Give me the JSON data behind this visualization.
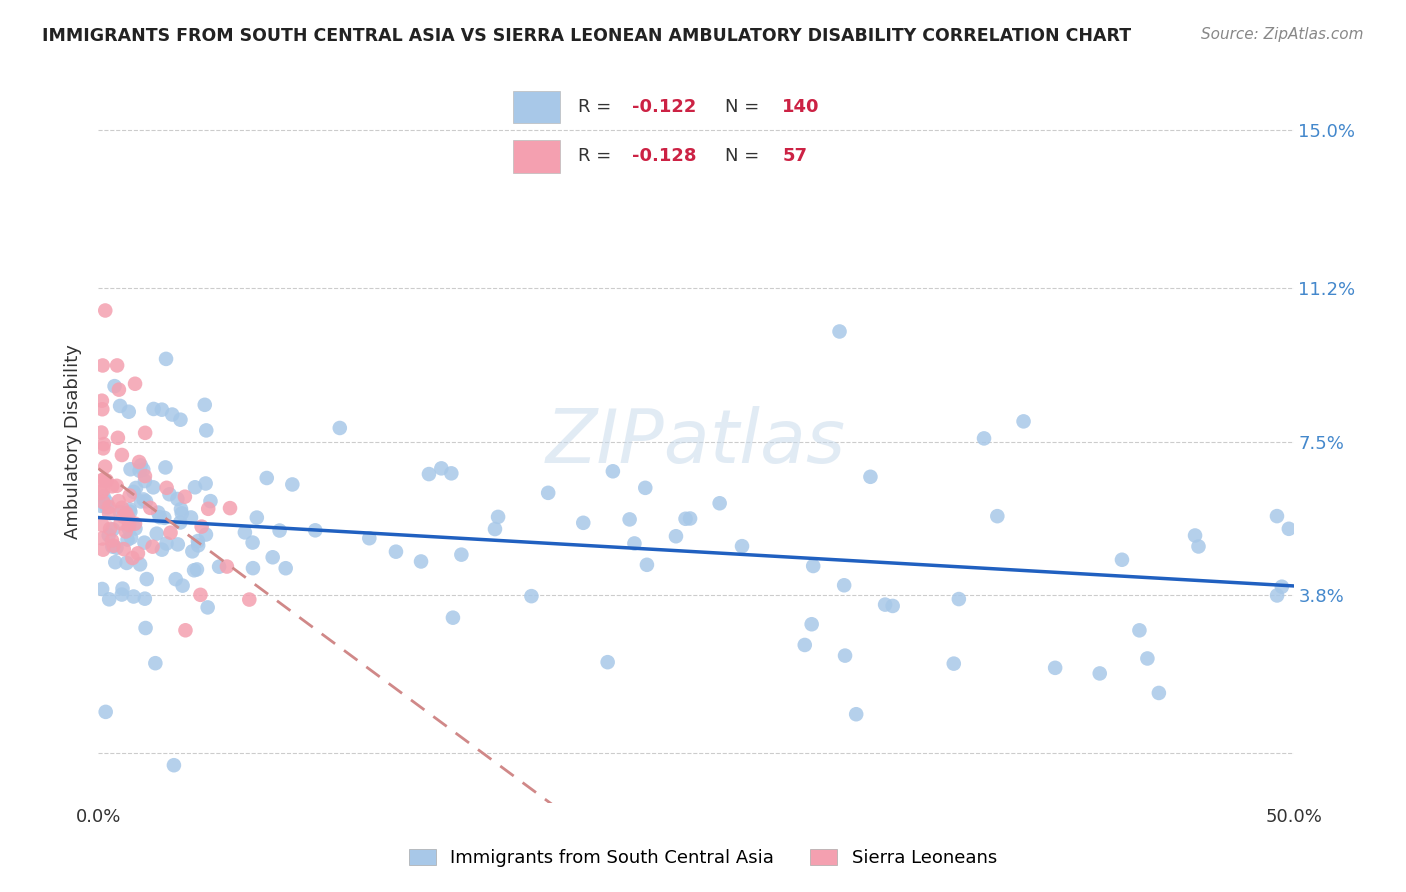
{
  "title": "IMMIGRANTS FROM SOUTH CENTRAL ASIA VS SIERRA LEONEAN AMBULATORY DISABILITY CORRELATION CHART",
  "source": "Source: ZipAtlas.com",
  "ylabel": "Ambulatory Disability",
  "watermark": "ZIPatlas",
  "xmin": 0.0,
  "xmax": 0.5,
  "ymin": -0.012,
  "ymax": 0.162,
  "yticks": [
    0.0,
    0.038,
    0.075,
    0.112,
    0.15
  ],
  "ytick_labels": [
    "",
    "3.8%",
    "7.5%",
    "11.2%",
    "15.0%"
  ],
  "xticks": [
    0.0,
    0.125,
    0.25,
    0.375,
    0.5
  ],
  "xtick_labels": [
    "0.0%",
    "",
    "",
    "",
    "50.0%"
  ],
  "color_blue": "#a8c8e8",
  "color_pink": "#f4a0b0",
  "trend_blue": "#2060c0",
  "trend_pink_r": "#d08888",
  "background": "#ffffff",
  "grid_color": "#cccccc"
}
